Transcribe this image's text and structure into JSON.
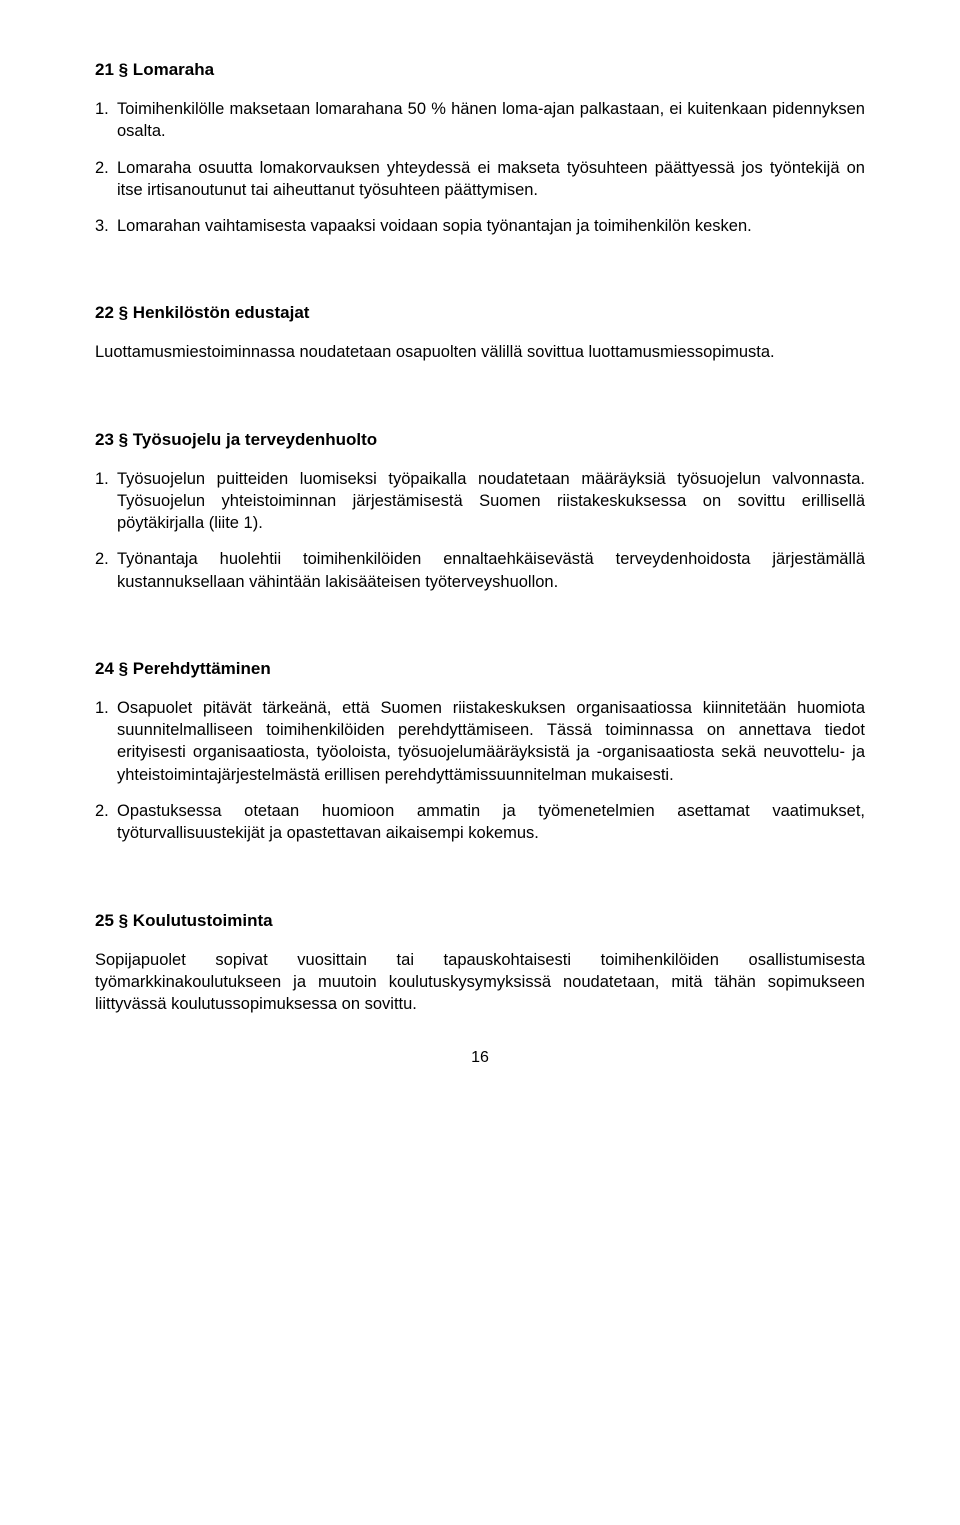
{
  "s21": {
    "heading": "21 § Lomaraha",
    "items": [
      {
        "n": "1.",
        "t": "Toimihenkilölle maksetaan lomarahana 50 % hänen loma-ajan palkastaan, ei kuitenkaan pidennyksen osalta."
      },
      {
        "n": "2.",
        "t": "Lomaraha osuutta lomakorvauksen yhteydessä ei makseta työsuhteen päättyessä jos työntekijä on itse irtisanoutunut tai aiheuttanut työsuhteen päättymisen."
      },
      {
        "n": "3.",
        "t": "Lomarahan vaihtamisesta vapaaksi voidaan sopia työnantajan ja toimihenkilön kesken."
      }
    ]
  },
  "s22": {
    "heading": "22 § Henkilöstön edustajat",
    "para": "Luottamusmiestoiminnassa noudatetaan osapuolten välillä sovittua luottamusmiessopimusta."
  },
  "s23": {
    "heading": "23 § Työsuojelu ja terveydenhuolto",
    "items": [
      {
        "n": "1.",
        "t": "Työsuojelun puitteiden luomiseksi työpaikalla noudatetaan määräyksiä työsuojelun valvonnasta. Työsuojelun yhteistoiminnan järjestämisestä Suomen riistakeskuksessa on sovittu erillisellä pöytäkirjalla (liite 1)."
      },
      {
        "n": "2.",
        "t": "Työnantaja huolehtii toimihenkilöiden ennaltaehkäisevästä terveydenhoidosta järjestämällä kustannuksellaan vähintään lakisääteisen työterveyshuollon."
      }
    ]
  },
  "s24": {
    "heading": "24 § Perehdyttäminen",
    "items": [
      {
        "n": "1.",
        "t": "Osapuolet pitävät tärkeänä, että Suomen riistakeskuksen organisaatiossa kiinnitetään huomiota suunnitelmalliseen toimihenkilöiden perehdyttämiseen. Tässä toiminnassa on annettava tiedot erityisesti organisaatiosta, työoloista, työsuojelumääräyksistä ja -organisaatiosta sekä neuvottelu- ja yhteistoimintajärjestelmästä erillisen perehdyttämissuunnitelman mukaisesti."
      },
      {
        "n": "2.",
        "t": "Opastuksessa otetaan huomioon ammatin ja työmenetelmien asettamat vaatimukset, työturvallisuustekijät ja opastettavan aikaisempi kokemus."
      }
    ]
  },
  "s25": {
    "heading": "25 § Koulutustoiminta",
    "para": "Sopijapuolet sopivat vuosittain tai tapauskohtaisesti toimihenkilöiden osallistumisesta työmarkkinakoulutukseen ja muutoin koulutuskysymyksissä noudatetaan, mitä tähän sopimukseen liittyvässä koulutussopimuksessa on sovittu."
  },
  "pageNumber": "16"
}
